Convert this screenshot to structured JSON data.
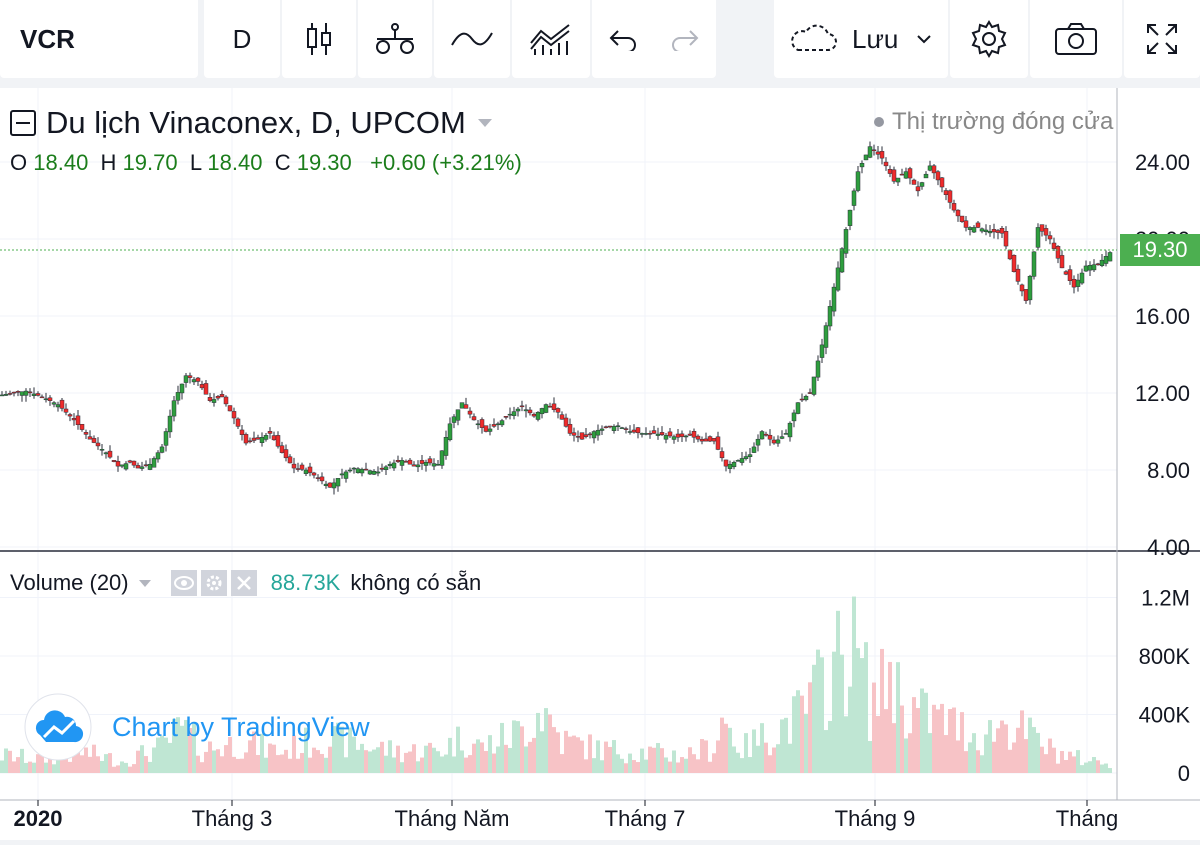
{
  "toolbar": {
    "symbol": "VCR",
    "interval": "D",
    "candles_icon": "candlestick-icon",
    "compare_icon": "compare-icon",
    "indicator_icon": "indicator-icon",
    "templates_icon": "templates-icon",
    "undo_icon": "undo-icon",
    "redo_icon": "redo-icon",
    "cloud_icon": "cloud-icon",
    "save_label": "Lưu",
    "settings_icon": "gear-icon",
    "snapshot_icon": "camera-icon",
    "fullscreen_icon": "fullscreen-icon"
  },
  "legend": {
    "title": "Du lịch Vinaconex, D, UPCOM",
    "o_label": "O",
    "o": "18.40",
    "h_label": "H",
    "h": "19.70",
    "l_label": "L",
    "l": "18.40",
    "c_label": "C",
    "c": "19.30",
    "change": "+0.60 (+3.21%)",
    "market_status": "Thị trường đóng cửa"
  },
  "volume_legend": {
    "label": "Volume (20)",
    "value": "88.73K",
    "status": "không có sẵn"
  },
  "watermark": "Chart by TradingView",
  "last_price": "19.30",
  "colors": {
    "up": "#26a69a",
    "up_candle": "#2e9e3e",
    "down": "#ef2b2b",
    "vol_up": "#bfe6d3",
    "vol_down": "#f7c3c6",
    "accent": "#2196f3"
  },
  "chart_data": {
    "type": "candlestick",
    "price_axis": {
      "ticks": [
        "24.00",
        "20.00",
        "16.00",
        "12.00",
        "8.00",
        "4.00"
      ],
      "ylim": [
        4,
        26
      ]
    },
    "volume_axis": {
      "ticks": [
        "1.2M",
        "800K",
        "400K",
        "0"
      ],
      "ylim": [
        0,
        1400000
      ]
    },
    "x_ticks": [
      "2020",
      "Tháng 3",
      "Tháng Năm",
      "Tháng 7",
      "Tháng 9",
      "Tháng"
    ],
    "close_path": [
      [
        0,
        11.9
      ],
      [
        6,
        12.1
      ],
      [
        10,
        11.8
      ],
      [
        14,
        11.4
      ],
      [
        18,
        10.6
      ],
      [
        22,
        9.6
      ],
      [
        26,
        8.9
      ],
      [
        29,
        8.2
      ],
      [
        32,
        8.4
      ],
      [
        34,
        8.1
      ],
      [
        37,
        8.3
      ],
      [
        40,
        9.2
      ],
      [
        43,
        11.6
      ],
      [
        46,
        12.9
      ],
      [
        49,
        12.6
      ],
      [
        52,
        11.6
      ],
      [
        55,
        11.8
      ],
      [
        58,
        10.7
      ],
      [
        61,
        9.4
      ],
      [
        64,
        9.6
      ],
      [
        67,
        9.9
      ],
      [
        70,
        8.9
      ],
      [
        73,
        8.1
      ],
      [
        76,
        8.0
      ],
      [
        79,
        7.6
      ],
      [
        82,
        7.1
      ],
      [
        85,
        7.8
      ],
      [
        88,
        8.1
      ],
      [
        91,
        8.0
      ],
      [
        94,
        7.9
      ],
      [
        97,
        8.3
      ],
      [
        100,
        8.5
      ],
      [
        103,
        8.2
      ],
      [
        106,
        8.4
      ],
      [
        109,
        8.3
      ],
      [
        112,
        10.4
      ],
      [
        115,
        11.5
      ],
      [
        118,
        10.6
      ],
      [
        121,
        10.0
      ],
      [
        124,
        10.4
      ],
      [
        127,
        10.9
      ],
      [
        130,
        11.3
      ],
      [
        133,
        10.8
      ],
      [
        136,
        11.4
      ],
      [
        139,
        11.0
      ],
      [
        142,
        9.9
      ],
      [
        145,
        9.6
      ],
      [
        148,
        10.0
      ],
      [
        151,
        10.2
      ],
      [
        154,
        10.3
      ],
      [
        157,
        10.0
      ],
      [
        160,
        9.9
      ],
      [
        163,
        9.9
      ],
      [
        166,
        9.8
      ],
      [
        169,
        9.7
      ],
      [
        172,
        9.8
      ],
      [
        175,
        9.5
      ],
      [
        178,
        9.5
      ],
      [
        181,
        8.2
      ],
      [
        184,
        8.5
      ],
      [
        187,
        8.8
      ],
      [
        190,
        10.0
      ],
      [
        193,
        9.4
      ],
      [
        196,
        9.9
      ],
      [
        199,
        11.5
      ],
      [
        202,
        12.0
      ],
      [
        205,
        14.5
      ],
      [
        208,
        17.5
      ],
      [
        211,
        20.5
      ],
      [
        214,
        23.5
      ],
      [
        217,
        24.8
      ],
      [
        220,
        24.2
      ],
      [
        223,
        23.0
      ],
      [
        226,
        23.5
      ],
      [
        229,
        22.5
      ],
      [
        232,
        23.8
      ],
      [
        235,
        22.7
      ],
      [
        238,
        21.5
      ],
      [
        241,
        20.6
      ],
      [
        244,
        20.6
      ],
      [
        247,
        20.4
      ],
      [
        250,
        20.3
      ],
      [
        253,
        18.3
      ],
      [
        256,
        16.8
      ],
      [
        259,
        20.6
      ],
      [
        262,
        20.0
      ],
      [
        265,
        18.5
      ],
      [
        268,
        17.5
      ],
      [
        271,
        18.6
      ],
      [
        274,
        18.7
      ],
      [
        277,
        19.3
      ]
    ],
    "volume_path": [
      [
        0,
        150000
      ],
      [
        10,
        120000
      ],
      [
        20,
        180000
      ],
      [
        30,
        100000
      ],
      [
        40,
        220000
      ],
      [
        45,
        380000
      ],
      [
        50,
        200000
      ],
      [
        60,
        260000
      ],
      [
        70,
        180000
      ],
      [
        80,
        300000
      ],
      [
        90,
        240000
      ],
      [
        100,
        180000
      ],
      [
        110,
        200000
      ],
      [
        115,
        300000
      ],
      [
        120,
        220000
      ],
      [
        130,
        360000
      ],
      [
        135,
        560000
      ],
      [
        140,
        280000
      ],
      [
        150,
        200000
      ],
      [
        160,
        180000
      ],
      [
        170,
        150000
      ],
      [
        178,
        220000
      ],
      [
        180,
        480000
      ],
      [
        185,
        200000
      ],
      [
        190,
        300000
      ],
      [
        200,
        500000
      ],
      [
        205,
        760000
      ],
      [
        208,
        900000
      ],
      [
        212,
        1100000
      ],
      [
        215,
        900000
      ],
      [
        217,
        600000
      ],
      [
        220,
        700000
      ],
      [
        222,
        900000
      ],
      [
        225,
        600000
      ],
      [
        230,
        500000
      ],
      [
        235,
        450000
      ],
      [
        240,
        380000
      ],
      [
        245,
        300000
      ],
      [
        250,
        420000
      ],
      [
        254,
        380000
      ],
      [
        258,
        300000
      ],
      [
        262,
        200000
      ],
      [
        266,
        150000
      ],
      [
        270,
        120000
      ],
      [
        274,
        100000
      ],
      [
        277,
        88730
      ]
    ]
  }
}
